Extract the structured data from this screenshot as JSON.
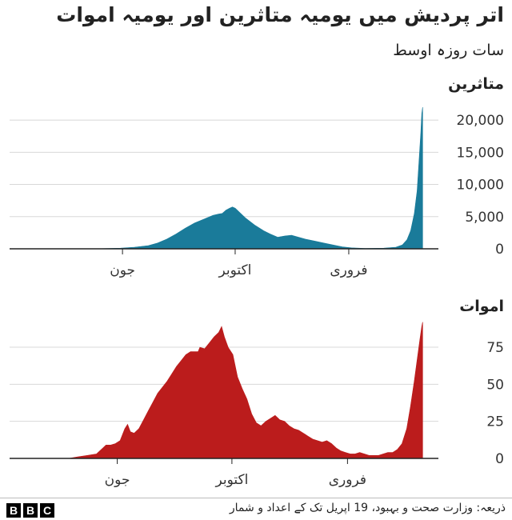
{
  "title": "اتر پردیش میں یومیہ متاثرین اور یومیہ اموات",
  "subtitle": "سات روزہ اوسط",
  "source": "ذریعہ: وزارت صحت و بہبود، 19 اپریل تک کے اعداد و شمار",
  "logo": {
    "letters": [
      "B",
      "B",
      "C"
    ]
  },
  "colors": {
    "cases": "#1a7b9a",
    "deaths": "#bb1c1c",
    "grid": "#d8d8d8",
    "axis": "#222222",
    "text": "#333333"
  },
  "chart_data": [
    {
      "id": "cases",
      "type": "area",
      "title": "متاثرین",
      "ylim": [
        0,
        22000
      ],
      "yticks": [
        {
          "value": 0,
          "label": "0"
        },
        {
          "value": 5000,
          "label": "5,000"
        },
        {
          "value": 10000,
          "label": "10,000"
        },
        {
          "value": 15000,
          "label": "15,000"
        },
        {
          "value": 20000,
          "label": "20,000"
        }
      ],
      "xlim": [
        0,
        395
      ],
      "xticks": [
        {
          "day": 72,
          "label": "جون"
        },
        {
          "day": 194,
          "label": "اکتوبر"
        },
        {
          "day": 317,
          "label": "فروری"
        }
      ],
      "series": [
        {
          "values": [
            [
              0,
              0
            ],
            [
              25,
              0
            ],
            [
              50,
              20
            ],
            [
              70,
              100
            ],
            [
              85,
              250
            ],
            [
              100,
              500
            ],
            [
              110,
              900
            ],
            [
              120,
              1500
            ],
            [
              130,
              2300
            ],
            [
              140,
              3200
            ],
            [
              150,
              4000
            ],
            [
              160,
              4600
            ],
            [
              170,
              5200
            ],
            [
              176,
              5400
            ],
            [
              180,
              5500
            ],
            [
              184,
              6000
            ],
            [
              188,
              6300
            ],
            [
              191,
              6500
            ],
            [
              194,
              6300
            ],
            [
              200,
              5500
            ],
            [
              205,
              4800
            ],
            [
              215,
              3700
            ],
            [
              225,
              2800
            ],
            [
              232,
              2300
            ],
            [
              240,
              1800
            ],
            [
              248,
              2000
            ],
            [
              255,
              2100
            ],
            [
              260,
              1900
            ],
            [
              270,
              1500
            ],
            [
              280,
              1200
            ],
            [
              290,
              900
            ],
            [
              300,
              600
            ],
            [
              310,
              300
            ],
            [
              320,
              150
            ],
            [
              335,
              50
            ],
            [
              355,
              100
            ],
            [
              368,
              250
            ],
            [
              375,
              600
            ],
            [
              380,
              1400
            ],
            [
              384,
              2800
            ],
            [
              388,
              5500
            ],
            [
              391,
              9000
            ],
            [
              393,
              13500
            ],
            [
              395,
              18000
            ],
            [
              396,
              21000
            ],
            [
              397,
              22000
            ]
          ]
        }
      ]
    },
    {
      "id": "deaths",
      "type": "area",
      "title": "اموات",
      "ylim": [
        0,
        95
      ],
      "yticks": [
        {
          "value": 0,
          "label": "0"
        },
        {
          "value": 25,
          "label": "25"
        },
        {
          "value": 50,
          "label": "50"
        },
        {
          "value": 75,
          "label": "75"
        }
      ],
      "xlim": [
        0,
        395
      ],
      "xticks": [
        {
          "day": 72,
          "label": "جون"
        },
        {
          "day": 194,
          "label": "اکتوبر"
        },
        {
          "day": 317,
          "label": "فروری"
        }
      ],
      "series": [
        {
          "values": [
            [
              0,
              0
            ],
            [
              20,
              0
            ],
            [
              30,
              1
            ],
            [
              40,
              2
            ],
            [
              50,
              3
            ],
            [
              55,
              6
            ],
            [
              60,
              9
            ],
            [
              65,
              9
            ],
            [
              70,
              10
            ],
            [
              75,
              12
            ],
            [
              80,
              20
            ],
            [
              83,
              23
            ],
            [
              86,
              18
            ],
            [
              90,
              17
            ],
            [
              95,
              20
            ],
            [
              100,
              26
            ],
            [
              105,
              32
            ],
            [
              110,
              38
            ],
            [
              115,
              44
            ],
            [
              120,
              48
            ],
            [
              125,
              52
            ],
            [
              130,
              57
            ],
            [
              135,
              62
            ],
            [
              140,
              66
            ],
            [
              145,
              70
            ],
            [
              150,
              72
            ],
            [
              155,
              72
            ],
            [
              158,
              72
            ],
            [
              160,
              75
            ],
            [
              165,
              74
            ],
            [
              170,
              78
            ],
            [
              175,
              82
            ],
            [
              180,
              85
            ],
            [
              183,
              89
            ],
            [
              186,
              82
            ],
            [
              190,
              75
            ],
            [
              195,
              70
            ],
            [
              200,
              55
            ],
            [
              205,
              47
            ],
            [
              210,
              40
            ],
            [
              215,
              30
            ],
            [
              220,
              24
            ],
            [
              225,
              22
            ],
            [
              230,
              25
            ],
            [
              235,
              27
            ],
            [
              240,
              29
            ],
            [
              245,
              26
            ],
            [
              250,
              25
            ],
            [
              255,
              22
            ],
            [
              260,
              20
            ],
            [
              265,
              19
            ],
            [
              270,
              17
            ],
            [
              275,
              15
            ],
            [
              280,
              13
            ],
            [
              285,
              12
            ],
            [
              290,
              11
            ],
            [
              295,
              12
            ],
            [
              300,
              10
            ],
            [
              305,
              7
            ],
            [
              310,
              5
            ],
            [
              315,
              4
            ],
            [
              320,
              3
            ],
            [
              325,
              3
            ],
            [
              330,
              4
            ],
            [
              335,
              3
            ],
            [
              340,
              2
            ],
            [
              345,
              2
            ],
            [
              350,
              2
            ],
            [
              355,
              3
            ],
            [
              360,
              4
            ],
            [
              365,
              4
            ],
            [
              370,
              6
            ],
            [
              375,
              10
            ],
            [
              380,
              20
            ],
            [
              384,
              35
            ],
            [
              388,
              52
            ],
            [
              391,
              66
            ],
            [
              394,
              80
            ],
            [
              396,
              89
            ],
            [
              397,
              92
            ]
          ]
        }
      ]
    }
  ]
}
